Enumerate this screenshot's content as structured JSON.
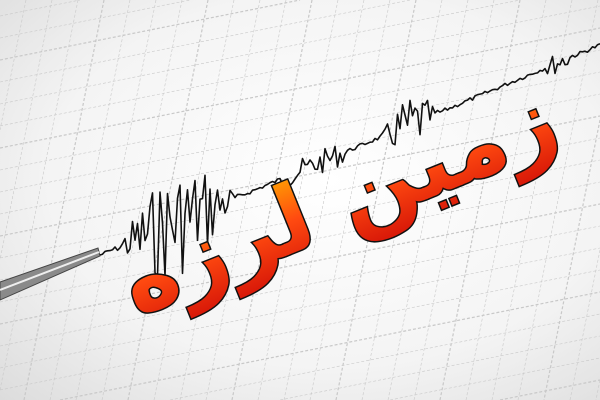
{
  "headline": {
    "text": "زمین لرزه",
    "fill_top": "#ffb000",
    "fill_bottom": "#e8200c",
    "outline": "#111111"
  },
  "colors": {
    "grid": "#c8c8c8",
    "trace": "#111111",
    "needle": "#777777"
  },
  "icons": [
    "seismograph-needle",
    "seismogram-trace"
  ]
}
